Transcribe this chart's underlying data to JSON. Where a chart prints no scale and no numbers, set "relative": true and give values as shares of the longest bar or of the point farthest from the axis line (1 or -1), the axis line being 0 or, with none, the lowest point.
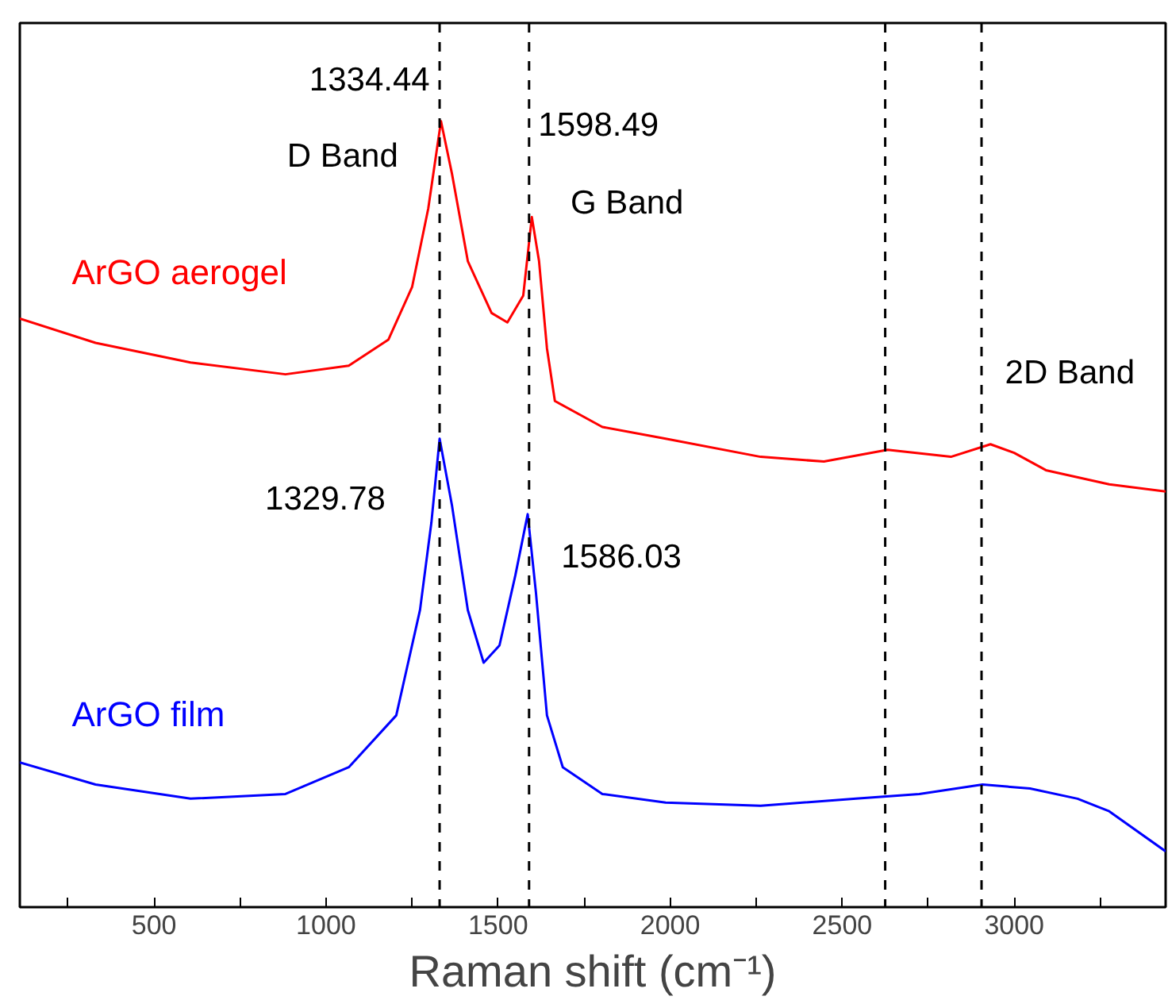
{
  "chart_data": {
    "type": "line",
    "xlabel": "Raman shift (cm⁻¹)",
    "relative": true,
    "xlim": [
      110,
      3440
    ],
    "xticks": [
      {
        "value": 250,
        "label": null
      },
      500,
      {
        "value": 750,
        "label": null
      },
      1000,
      {
        "value": 1250,
        "label": null
      },
      1500,
      {
        "value": 1750,
        "label": null
      },
      2000,
      {
        "value": 2250,
        "label": null
      },
      2500,
      {
        "value": 2750,
        "label": null
      },
      3000,
      {
        "value": 3250,
        "label": null
      }
    ],
    "tick_labels": "x",
    "grid": false,
    "series": [
      {
        "name": "ArGO aerogel",
        "color": "#ff0000",
        "x": [
          110,
          330,
          606,
          882,
          1066,
          1181,
          1250,
          1297,
          1334,
          1366,
          1412,
          1481,
          1527,
          1573,
          1598,
          1619,
          1642,
          1665,
          1803,
          1987,
          2263,
          2447,
          2632,
          2816,
          2931,
          3000,
          3092,
          3276,
          3440
        ],
        "values": [
          0.749,
          0.718,
          0.693,
          0.678,
          0.689,
          0.722,
          0.789,
          0.889,
          1,
          0.933,
          0.822,
          0.756,
          0.744,
          0.778,
          0.878,
          0.822,
          0.711,
          0.644,
          0.611,
          0.596,
          0.573,
          0.567,
          0.582,
          0.573,
          0.589,
          0.578,
          0.556,
          0.538,
          0.529
        ]
      },
      {
        "name": "ArGO film",
        "color": "#0000ff",
        "x": [
          110,
          330,
          606,
          882,
          1066,
          1204,
          1273,
          1306,
          1330,
          1366,
          1412,
          1458,
          1504,
          1550,
          1586,
          1610,
          1642,
          1688,
          1803,
          1987,
          2263,
          2540,
          2724,
          2908,
          3046,
          3184,
          3276,
          3440
        ],
        "values": [
          0.184,
          0.156,
          0.138,
          0.144,
          0.178,
          0.244,
          0.378,
          0.489,
          0.596,
          0.511,
          0.378,
          0.311,
          0.333,
          0.422,
          0.5,
          0.4,
          0.244,
          0.178,
          0.144,
          0.133,
          0.129,
          0.138,
          0.144,
          0.156,
          0.151,
          0.138,
          0.122,
          0.071
        ]
      }
    ],
    "ref_lines": [
      {
        "axis": "x",
        "value": 1330,
        "line_style": "dashed",
        "color": "#000000"
      },
      {
        "axis": "x",
        "value": 1590,
        "line_style": "dashed",
        "color": "#000000"
      },
      {
        "axis": "x",
        "value": 2625,
        "line_style": "dashed",
        "color": "#000000"
      },
      {
        "axis": "x",
        "value": 2905,
        "line_style": "dashed",
        "color": "#000000"
      }
    ],
    "annotations": [
      {
        "text": "1334.44",
        "x": 1334,
        "y": 1
      },
      {
        "text": "D Band",
        "x": 1334,
        "y": 1
      },
      {
        "text": "1598.49",
        "x": 1598,
        "y": 0.878
      },
      {
        "text": "G Band",
        "x": 1598,
        "y": 0.878
      },
      {
        "text": "2D Band",
        "x": 2931,
        "y": 0.589
      },
      {
        "text": "1329.78",
        "x": 1330,
        "y": 0.596
      },
      {
        "text": "1586.03",
        "x": 1586,
        "y": 0.5
      }
    ]
  }
}
